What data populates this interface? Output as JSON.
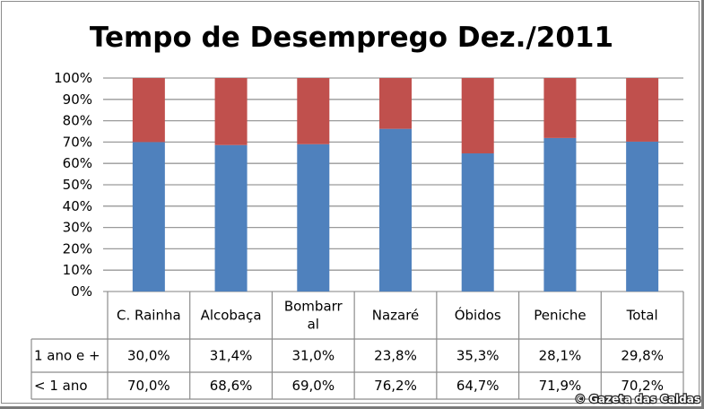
{
  "chart_data": {
    "type": "bar",
    "stacked": true,
    "percent_stacked": true,
    "title": "Tempo de Desemprego Dez./2011",
    "xlabel": "",
    "ylabel": "",
    "ylim": [
      0,
      100
    ],
    "y_ticks": [
      "0%",
      "10%",
      "20%",
      "30%",
      "40%",
      "50%",
      "60%",
      "70%",
      "80%",
      "90%",
      "100%"
    ],
    "grid": true,
    "categories": [
      "C. Rainha",
      "Alcobaça",
      "Bombarral",
      "Nazaré",
      "Óbidos",
      "Peniche",
      "Total"
    ],
    "category_label_lines": [
      [
        "C. Rainha"
      ],
      [
        "Alcobaça"
      ],
      [
        "Bombarr",
        "al"
      ],
      [
        "Nazaré"
      ],
      [
        "Óbidos"
      ],
      [
        "Peniche"
      ],
      [
        "Total"
      ]
    ],
    "series": [
      {
        "name": "< 1 ano",
        "color": "#4f81bd",
        "values": [
          70.0,
          68.6,
          69.0,
          76.2,
          64.7,
          71.9,
          70.2
        ],
        "labels": [
          "70,0%",
          "68,6%",
          "69,0%",
          "76,2%",
          "64,7%",
          "71,9%",
          "70,2%"
        ]
      },
      {
        "name": "1 ano e +",
        "color": "#c0504d",
        "values": [
          30.0,
          31.4,
          31.0,
          23.8,
          35.3,
          28.1,
          29.8
        ],
        "labels": [
          "30,0%",
          "31,4%",
          "31,0%",
          "23,8%",
          "35,3%",
          "28,1%",
          "29,8%"
        ]
      }
    ],
    "data_table_row_order": [
      "1 ano e +",
      "< 1 ano"
    ]
  },
  "watermark": "© Gazeta das Caldas"
}
